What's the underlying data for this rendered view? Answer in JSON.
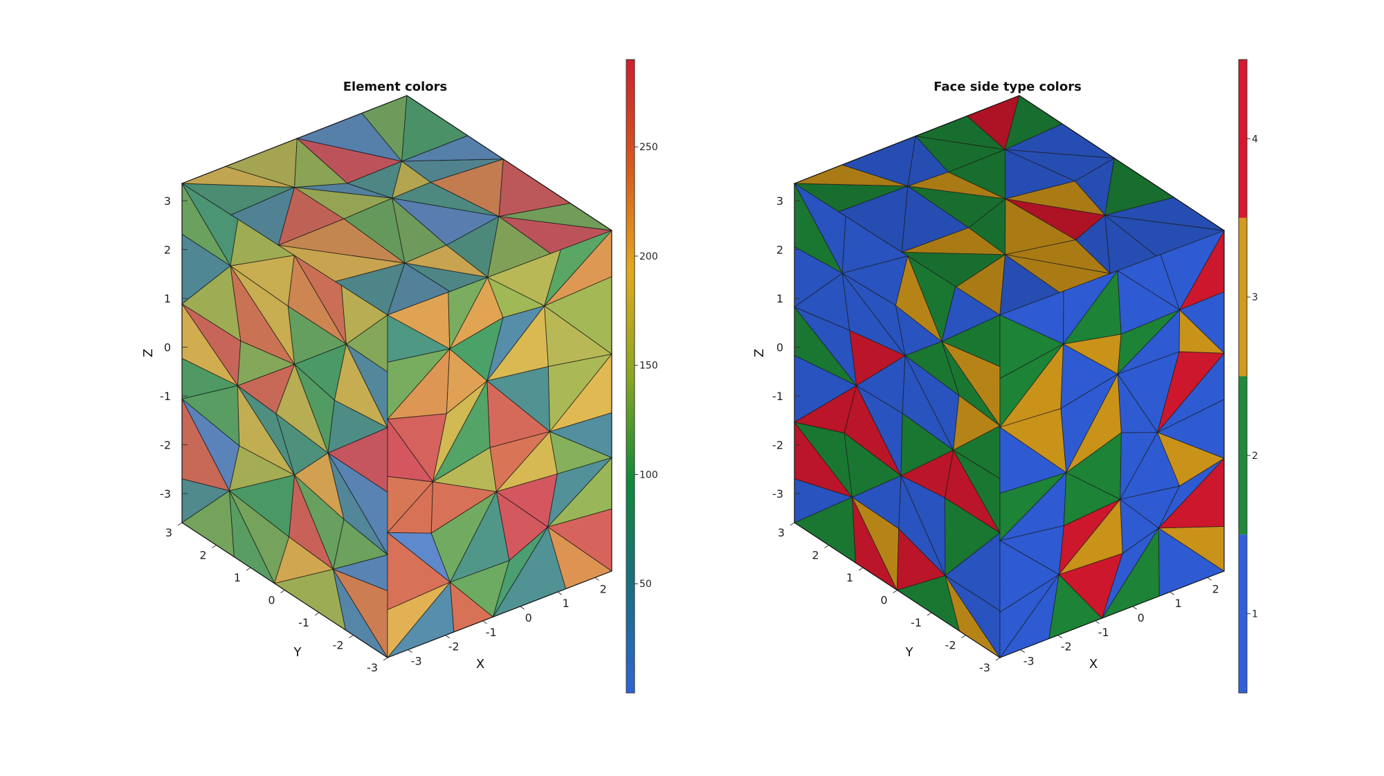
{
  "chart_data": [
    {
      "type": "3d-mesh",
      "title": "Element colors",
      "xlabel": "X",
      "ylabel": "Y",
      "zlabel": "Z",
      "x_ticks": [
        "-3",
        "-2",
        "-1",
        "0",
        "1",
        "2"
      ],
      "y_ticks": [
        "3",
        "2",
        "1",
        "0",
        "-1",
        "-2",
        "-3"
      ],
      "z_ticks": [
        "3",
        "2",
        "1",
        "0",
        "-1",
        "-2",
        "-3"
      ],
      "xlim": [
        -3,
        3
      ],
      "ylim": [
        -3,
        3
      ],
      "zlim": [
        -3.5,
        3.5
      ],
      "colormap": "parula-like continuous",
      "colorbar": {
        "range": [
          0,
          290
        ],
        "ticks": [
          50,
          100,
          150,
          200,
          250
        ],
        "tick_labels": [
          "50",
          "100",
          "150",
          "200",
          "250"
        ],
        "stops": [
          "#2f64d8",
          "#1a6f84",
          "#0f8a3a",
          "#8aa820",
          "#e4a91a",
          "#d8581c",
          "#cf1f2e"
        ]
      },
      "face_alpha": 0.75
    },
    {
      "type": "3d-mesh",
      "title": "Face side type colors",
      "xlabel": "X",
      "ylabel": "Y",
      "zlabel": "Z",
      "x_ticks": [
        "-3",
        "-2",
        "-1",
        "0",
        "1",
        "2"
      ],
      "y_ticks": [
        "3",
        "2",
        "1",
        "0",
        "-1",
        "-2",
        "-3"
      ],
      "z_ticks": [
        "3",
        "2",
        "1",
        "0",
        "-1",
        "-2",
        "-3"
      ],
      "xlim": [
        -3,
        3
      ],
      "ylim": [
        -3,
        3
      ],
      "zlim": [
        -3.5,
        3.5
      ],
      "colorbar": {
        "range": [
          0.5,
          4.5
        ],
        "ticks": [
          1,
          2,
          3,
          4
        ],
        "tick_labels": [
          "1",
          "2",
          "3",
          "4"
        ],
        "categories": [
          {
            "value": 1,
            "color": "#3060dd"
          },
          {
            "value": 2,
            "color": "#1e8a3a"
          },
          {
            "value": 3,
            "color": "#d49a1a"
          },
          {
            "value": 4,
            "color": "#d8182e"
          }
        ]
      },
      "face_alpha": 1
    }
  ]
}
